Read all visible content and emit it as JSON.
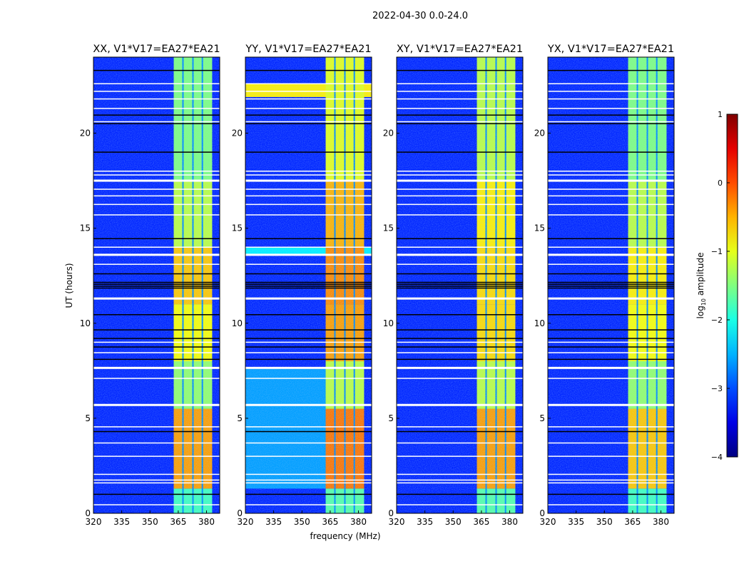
{
  "figure_title": "2022-04-30 0.0-24.0",
  "chart_data": {
    "type": "heatmap",
    "colormap": "jet",
    "xlabel": "frequency (MHz)",
    "ylabel": "UT (hours)",
    "xlim": [
      320,
      387
    ],
    "ylim": [
      0,
      24
    ],
    "xticks": [
      "320",
      "335",
      "350",
      "365",
      "380"
    ],
    "xtick_values": [
      320,
      335,
      350,
      365,
      380
    ],
    "yticks": [
      "0",
      "5",
      "10",
      "15",
      "20"
    ],
    "ytick_values": [
      0,
      5,
      10,
      15,
      20
    ],
    "colorbar": {
      "label_main": "log",
      "label_sub": "10",
      "label_rest": " amplitude",
      "range": [
        -4,
        1
      ],
      "ticks": [
        "−4",
        "−3",
        "−2",
        "−1",
        "0",
        "1"
      ],
      "tick_values": [
        -4,
        -3,
        -2,
        -1,
        0,
        1
      ]
    },
    "background_log_amplitude": -3.2,
    "bright_band_mhz": [
      362.6,
      383.0
    ],
    "band_gaps_mhz": [
      367.5,
      372.8,
      377.8
    ],
    "time_segments_hours": [
      0,
      1.3,
      5.5,
      8,
      11,
      14,
      17.5,
      24
    ],
    "flagged_white_hours": [
      0.45,
      1.6,
      1.75,
      2.05,
      3.0,
      3.7,
      4.55,
      5.7,
      7.1,
      7.65,
      8.45,
      9.0,
      11.3,
      13.1,
      13.6,
      14.0,
      15.7,
      16.25,
      16.7,
      17.05,
      17.5,
      17.8,
      18.0,
      20.6,
      21.3,
      21.8,
      22.2,
      22.6
    ],
    "thick_white_hours": [
      5.7,
      7.65,
      11.3,
      13.6,
      17.5
    ],
    "black_line_hours": [
      1.0,
      4.3,
      8.1,
      8.75,
      9.2,
      9.65,
      10.45,
      11.85,
      11.95,
      12.05,
      12.15,
      12.6,
      14.45,
      19.0,
      20.5,
      20.95,
      23.3
    ],
    "panels": [
      {
        "title": "XX, V1*V17=EA27*EA21",
        "band_log_amplitude": [
          -1.8,
          -0.4,
          -1.4,
          -0.9,
          -0.6,
          -1.2,
          -1.5
        ],
        "broadband": []
      },
      {
        "title": "YY, V1*V17=EA27*EA21",
        "band_log_amplitude": [
          -1.7,
          -0.2,
          -1.2,
          -0.4,
          -0.3,
          -0.5,
          -1.0
        ],
        "broadband": [
          {
            "freq": [
              320,
              362.6
            ],
            "time": [
              1.3,
              7.6
            ],
            "value": -2.6
          },
          {
            "freq": [
              320,
              387
            ],
            "time": [
              21.9,
              22.6
            ],
            "value": -0.8
          },
          {
            "freq": [
              320,
              387
            ],
            "time": [
              13.6,
              14.0
            ],
            "value": -2.2
          }
        ]
      },
      {
        "title": "XY, V1*V17=EA27*EA21",
        "band_log_amplitude": [
          -1.7,
          -0.4,
          -1.2,
          -0.7,
          -0.7,
          -0.8,
          -1.2
        ],
        "broadband": []
      },
      {
        "title": "YX, V1*V17=EA27*EA21",
        "band_log_amplitude": [
          -1.8,
          -0.6,
          -1.4,
          -0.9,
          -0.8,
          -1.2,
          -1.5
        ],
        "broadband": []
      }
    ]
  }
}
